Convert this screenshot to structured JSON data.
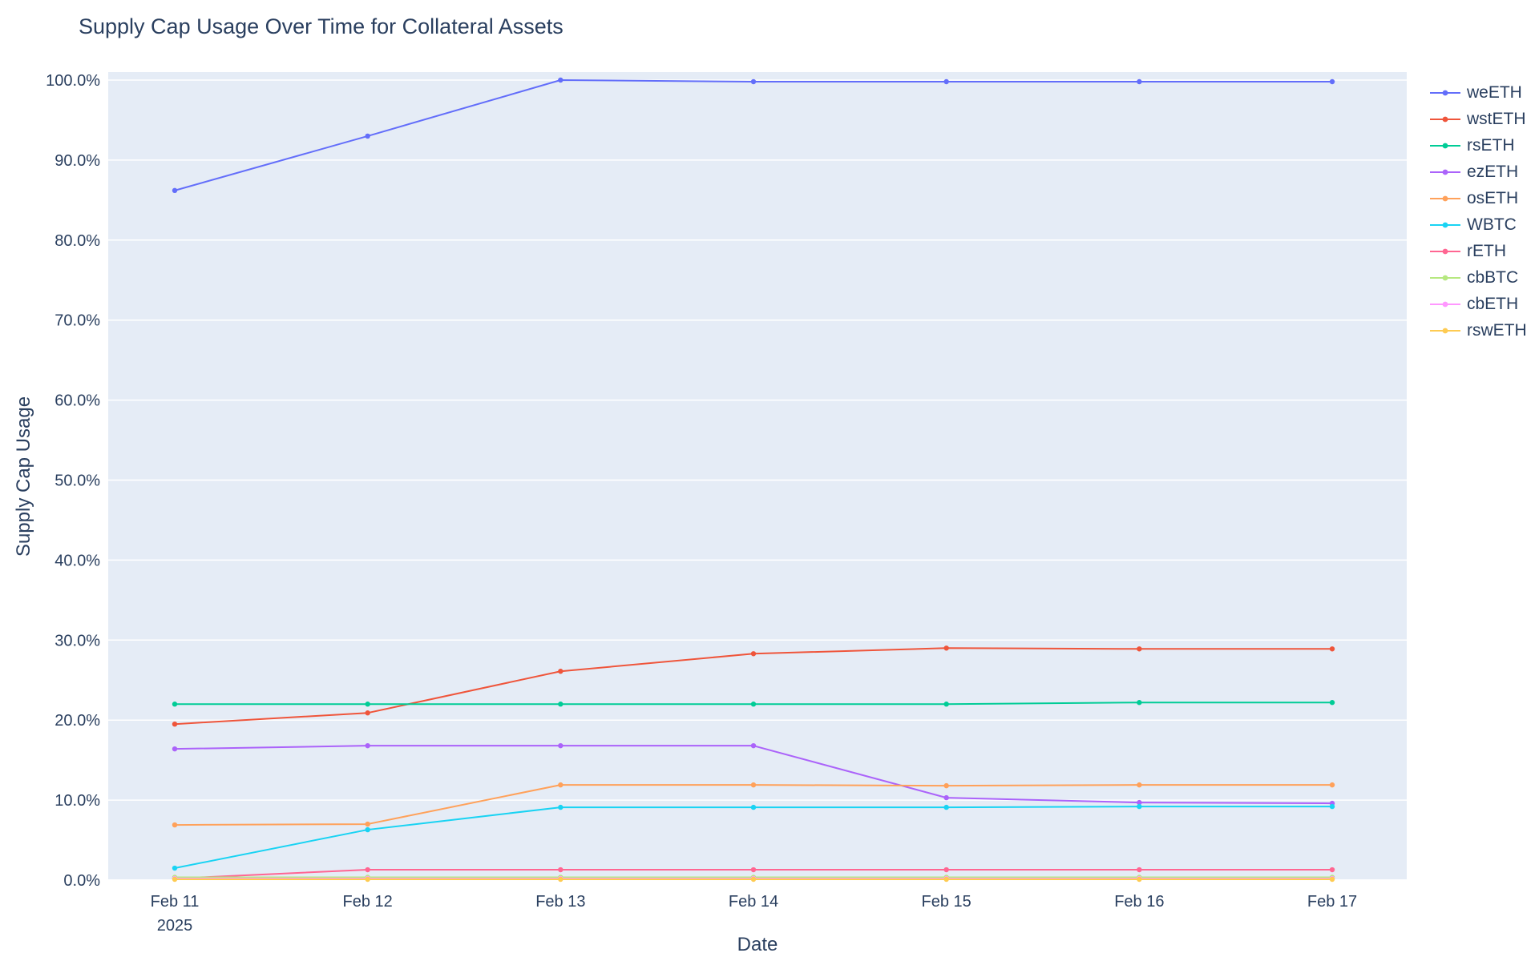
{
  "chart_data": {
    "type": "line",
    "title": "Supply Cap Usage Over Time for Collateral Assets",
    "xlabel": "Date",
    "ylabel": "Supply Cap Usage",
    "x_tick_labels": [
      "Feb 11",
      "Feb 12",
      "Feb 13",
      "Feb 14",
      "Feb 15",
      "Feb 16",
      "Feb 17"
    ],
    "x_first_tick_year": "2025",
    "ylim": [
      0,
      100
    ],
    "y_tick_step": 10,
    "y_tick_format": "percent_1dp",
    "grid": true,
    "legend_position": "right",
    "plot_bg_color": "#e5ecf6",
    "grid_color": "#ffffff",
    "text_color": "#2a3f5f",
    "series": [
      {
        "name": "weETH",
        "color": "#636efa",
        "values": [
          86.2,
          93.0,
          100.0,
          99.8,
          99.8,
          99.8,
          99.8
        ]
      },
      {
        "name": "wstETH",
        "color": "#ef553b",
        "values": [
          19.5,
          20.9,
          26.1,
          28.3,
          29.0,
          28.9,
          28.9
        ]
      },
      {
        "name": "rsETH",
        "color": "#00cc96",
        "values": [
          22.0,
          22.0,
          22.0,
          22.0,
          22.0,
          22.2,
          22.2
        ]
      },
      {
        "name": "ezETH",
        "color": "#ab63fa",
        "values": [
          16.4,
          16.8,
          16.8,
          16.8,
          10.3,
          9.7,
          9.6
        ]
      },
      {
        "name": "osETH",
        "color": "#ffa15a",
        "values": [
          6.9,
          7.0,
          11.9,
          11.9,
          11.8,
          11.9,
          11.9
        ]
      },
      {
        "name": "WBTC",
        "color": "#19d3f3",
        "values": [
          1.5,
          6.3,
          9.1,
          9.1,
          9.1,
          9.2,
          9.2
        ]
      },
      {
        "name": "rETH",
        "color": "#ff6692",
        "values": [
          0.2,
          1.3,
          1.3,
          1.3,
          1.3,
          1.3,
          1.3
        ]
      },
      {
        "name": "cbBTC",
        "color": "#b6e880",
        "values": [
          0.35,
          0.35,
          0.35,
          0.35,
          0.35,
          0.35,
          0.35
        ]
      },
      {
        "name": "cbETH",
        "color": "#ff97ff",
        "values": [
          0.2,
          0.2,
          0.2,
          0.2,
          0.2,
          0.2,
          0.2
        ]
      },
      {
        "name": "rswETH",
        "color": "#fecb52",
        "values": [
          0.1,
          0.1,
          0.1,
          0.1,
          0.1,
          0.1,
          0.1
        ]
      }
    ]
  }
}
